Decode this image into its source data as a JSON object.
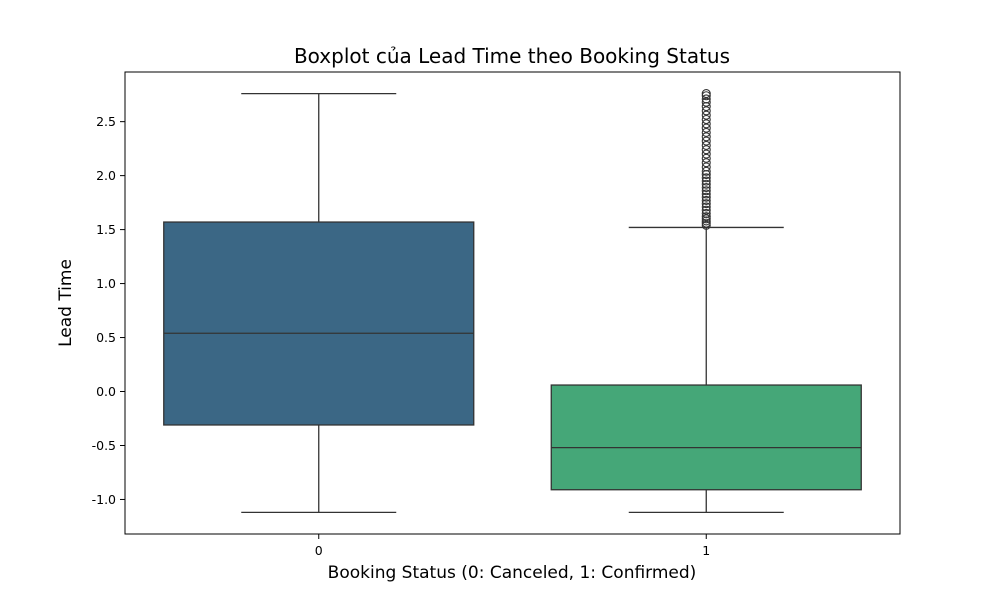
{
  "chart_data": {
    "type": "boxplot",
    "title": "Boxplot của Lead Time theo Booking Status",
    "xlabel": "Booking Status (0: Canceled, 1: Confirmed)",
    "ylabel": "Lead Time",
    "ylim": [
      -1.32,
      2.96
    ],
    "yticks": [
      "-1.0",
      "-0.5",
      "0.0",
      "0.5",
      "1.0",
      "1.5",
      "2.0",
      "2.5"
    ],
    "grid": false,
    "categories": [
      "0",
      "1"
    ],
    "boxes": [
      {
        "category": "0",
        "color": "#3b6785",
        "whisker_low": -1.12,
        "q1": -0.31,
        "median": 0.54,
        "q3": 1.57,
        "whisker_high": 2.76,
        "outliers": []
      },
      {
        "category": "1",
        "color": "#45a778",
        "whisker_low": -1.12,
        "q1": -0.91,
        "median": -0.52,
        "q3": 0.06,
        "whisker_high": 1.52,
        "outliers": [
          1.54,
          1.56,
          1.58,
          1.6,
          1.62,
          1.65,
          1.68,
          1.71,
          1.74,
          1.77,
          1.8,
          1.83,
          1.86,
          1.89,
          1.92,
          1.95,
          1.98,
          2.01,
          2.04,
          2.08,
          2.12,
          2.16,
          2.2,
          2.24,
          2.28,
          2.32,
          2.36,
          2.4,
          2.44,
          2.48,
          2.52,
          2.56,
          2.6,
          2.64,
          2.68,
          2.71,
          2.74,
          2.76
        ]
      }
    ]
  }
}
